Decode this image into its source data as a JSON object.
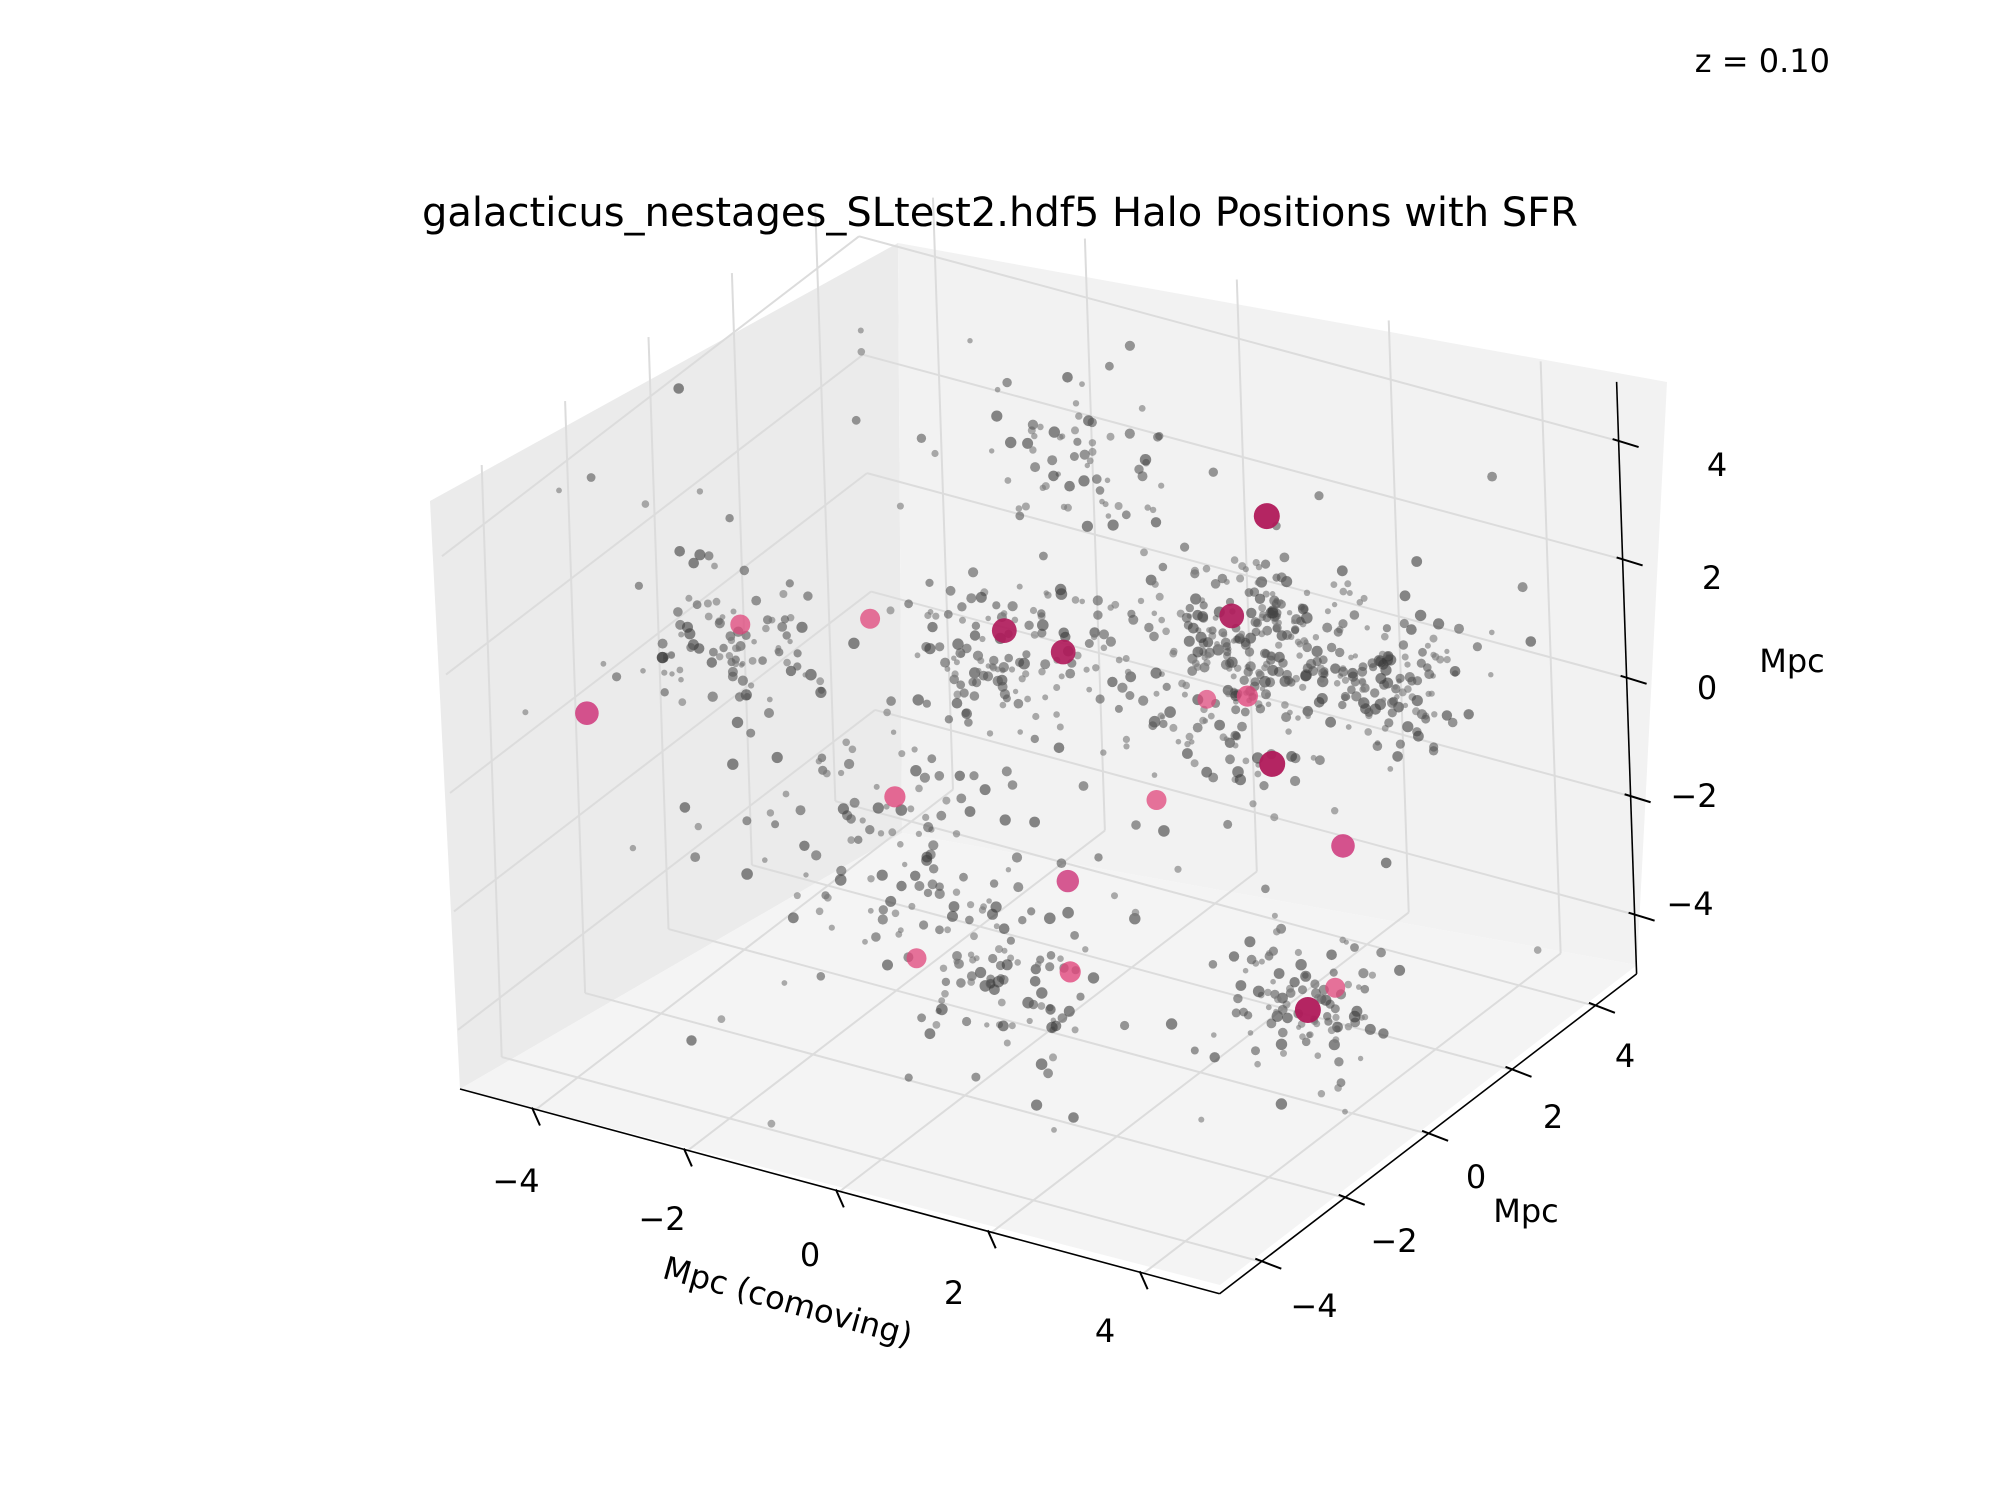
{
  "figure": {
    "annotation": "z = 0.10"
  },
  "chart_data": {
    "type": "scatter",
    "projection": "3d",
    "title": "galacticus_nestages_SLtest2.hdf5 Halo Positions with SFR",
    "xlabel": "Mpc (comoving)",
    "ylabel": "Mpc",
    "zlabel": "Mpc",
    "xlim": [
      -5,
      5
    ],
    "ylim": [
      -5,
      5
    ],
    "zlim": [
      -5,
      5
    ],
    "xticks": [
      -4,
      -2,
      0,
      2,
      4
    ],
    "yticks": [
      -4,
      -2,
      0,
      2,
      4
    ],
    "zticks": [
      -4,
      -2,
      0,
      2,
      4
    ],
    "x_tick_labels": [
      "−4",
      "−2",
      "0",
      "2",
      "4"
    ],
    "y_tick_labels": [
      "−4",
      "−2",
      "0",
      "2",
      "4"
    ],
    "z_tick_labels": [
      "−4",
      "−2",
      "0",
      "2",
      "4"
    ],
    "grid": true,
    "legend": "none",
    "colors": {
      "halo": "#555555",
      "star_forming": "#e0457b",
      "pane_left": "#ebebeb",
      "pane_back": "#f2f2f2",
      "pane_floor": "#f4f4f4",
      "grid": "#dcdcdc"
    },
    "series": [
      {
        "role": "star-forming halos",
        "x": [
          -3.6,
          1.6,
          -1.5,
          4.8,
          0.0,
          -3.0,
          -1.2,
          2.0,
          1.2,
          -0.2,
          1.6,
          4.4,
          2.6,
          3.8,
          3.6,
          1.0,
          0.1,
          1.8
        ],
        "y": [
          -4.2,
          2.7,
          -1.2,
          -3.0,
          -3.4,
          -1.6,
          1.4,
          1.4,
          0.6,
          1.0,
          1.8,
          -1.0,
          -4.0,
          -0.6,
          0.7,
          -1.2,
          -3.2,
          0.8
        ],
        "z": [
          1.4,
          2.8,
          2.1,
          2.8,
          0.8,
          1.7,
          0.6,
          0.6,
          -1.0,
          0.8,
          1.6,
          -2.2,
          0.6,
          -3.0,
          -1.0,
          -3.0,
          -2.0,
          0.8
        ],
        "sfr": [
          0.8,
          1.0,
          0.5,
          1.0,
          0.6,
          0.5,
          0.9,
          0.6,
          0.5,
          0.9,
          0.9,
          0.5,
          0.7,
          1.0,
          0.8,
          0.6,
          0.5,
          0.4
        ]
      }
    ]
  }
}
